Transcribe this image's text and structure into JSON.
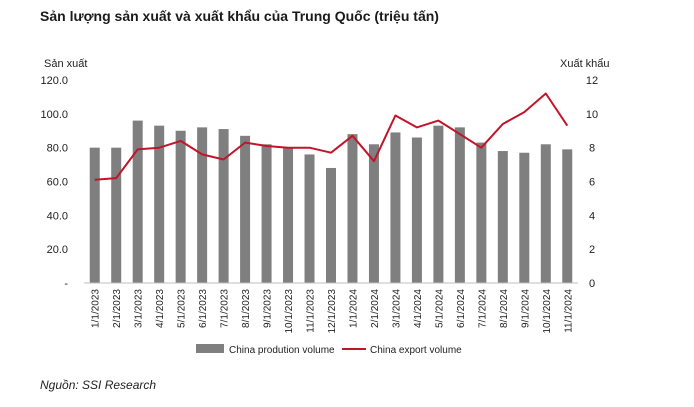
{
  "title": "Sản lượng sản xuất và xuất khẩu của Trung Quốc (triệu tấn)",
  "source": "Nguồn: SSI Research",
  "chart_data": {
    "type": "bar+line",
    "categories": [
      "1/1/2023",
      "2/1/2023",
      "3/1/2023",
      "4/1/2023",
      "5/1/2023",
      "6/1/2023",
      "7/1/2023",
      "8/1/2023",
      "9/1/2023",
      "10/1/2023",
      "11/1/2023",
      "12/1/2023",
      "1/1/2024",
      "2/1/2024",
      "3/1/2024",
      "4/1/2024",
      "5/1/2024",
      "6/1/2024",
      "7/1/2024",
      "8/1/2024",
      "9/1/2024",
      "10/1/2024",
      "11/1/2024"
    ],
    "left_axis": {
      "label": "Sản xuất",
      "ylim": [
        0,
        120
      ],
      "ticks": [
        "-",
        "20.0",
        "40.0",
        "60.0",
        "80.0",
        "100.0",
        "120.0"
      ]
    },
    "right_axis": {
      "label": "Xuất khẩu",
      "ylim": [
        0,
        12
      ],
      "ticks": [
        "0",
        "2",
        "4",
        "6",
        "8",
        "10",
        "12"
      ]
    },
    "series": [
      {
        "name": "China prodution volume",
        "type": "bar",
        "axis": "left",
        "color": "#7f7f7f",
        "values": [
          80,
          80,
          96,
          93,
          90,
          92,
          91,
          87,
          82,
          80,
          76,
          68,
          88,
          82,
          89,
          86,
          93,
          92,
          83,
          78,
          77,
          82,
          79
        ]
      },
      {
        "name": "China export volume",
        "type": "line",
        "axis": "right",
        "color": "#c0152a",
        "values": [
          6.1,
          6.2,
          7.9,
          8.0,
          8.4,
          7.6,
          7.3,
          8.3,
          8.1,
          8.0,
          8.0,
          7.7,
          8.7,
          7.2,
          9.9,
          9.2,
          9.6,
          8.8,
          8.0,
          9.4,
          10.1,
          11.2,
          9.3
        ]
      }
    ],
    "legend_position": "bottom",
    "grid": false
  }
}
